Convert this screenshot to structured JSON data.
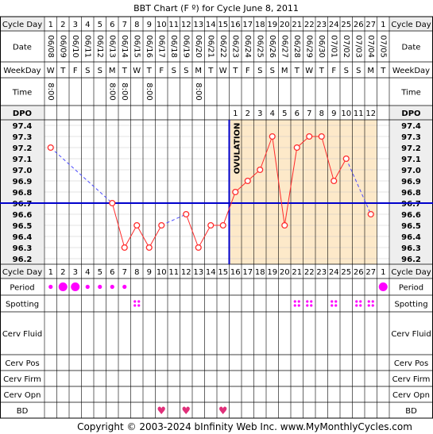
{
  "title": "BBT Chart (F º) for Cycle June 8, 2011",
  "footer": "Copyright © 2003-2024 bInfinity Web Inc.    www.MyMonthlyCycles.com",
  "row_labels": {
    "cycle_day": "Cycle Day",
    "date": "Date",
    "weekday": "WeekDay",
    "time": "Time",
    "dpo": "DPO",
    "period": "Period",
    "spotting": "Spotting",
    "cerv_fluid": "Cerv Fluid",
    "cerv_pos": "Cerv Pos",
    "cerv_firm": "Cerv Firm",
    "cerv_opn": "Cerv Opn",
    "bd": "BD"
  },
  "ovulation_label": "OVULATION",
  "days": [
    "1",
    "2",
    "3",
    "4",
    "5",
    "6",
    "7",
    "8",
    "9",
    "10",
    "11",
    "12",
    "13",
    "14",
    "15",
    "16",
    "17",
    "18",
    "19",
    "20",
    "21",
    "22",
    "23",
    "24",
    "25",
    "26",
    "27",
    "1"
  ],
  "dates": [
    "06/08",
    "06/09",
    "06/10",
    "06/11",
    "06/12",
    "06/13",
    "06/14",
    "06/15",
    "06/16",
    "06/17",
    "06/18",
    "06/19",
    "06/20",
    "06/21",
    "06/22",
    "06/23",
    "06/24",
    "06/25",
    "06/26",
    "06/27",
    "06/28",
    "06/29",
    "06/30",
    "07/01",
    "07/02",
    "07/03",
    "07/04",
    "07/05"
  ],
  "weekdays": [
    "W",
    "T",
    "F",
    "S",
    "S",
    "M",
    "T",
    "W",
    "T",
    "F",
    "S",
    "S",
    "M",
    "T",
    "W",
    "T",
    "F",
    "S",
    "S",
    "M",
    "T",
    "W",
    "T",
    "F",
    "S",
    "S",
    "M",
    "T"
  ],
  "times": [
    "8:00",
    "",
    "",
    "",
    "",
    "8:00",
    "8:00",
    "",
    "8:00",
    "",
    "",
    "",
    "8:00",
    "",
    "",
    "",
    "",
    "",
    "",
    "",
    "",
    "",
    "",
    "",
    "",
    "",
    "",
    ""
  ],
  "dpo": [
    "",
    "",
    "",
    "",
    "",
    "",
    "",
    "",
    "",
    "",
    "",
    "",
    "",
    "",
    "",
    "1",
    "2",
    "3",
    "4",
    "5",
    "6",
    "7",
    "8",
    "9",
    "10",
    "11",
    "12",
    ""
  ],
  "temp_labels": [
    "97.4",
    "97.3",
    "97.2",
    "97.1",
    "97.0",
    "96.9",
    "96.8",
    "96.7",
    "96.6",
    "96.5",
    "96.4",
    "96.3",
    "96.2"
  ],
  "period": [
    "small",
    "large",
    "large",
    "small",
    "small",
    "small",
    "small",
    "",
    "",
    "",
    "",
    "",
    "",
    "",
    "",
    "",
    "",
    "",
    "",
    "",
    "",
    "",
    "",
    "",
    "",
    "",
    "",
    "large"
  ],
  "spotting": [
    false,
    false,
    false,
    false,
    false,
    false,
    false,
    true,
    false,
    false,
    false,
    false,
    false,
    false,
    false,
    false,
    false,
    false,
    false,
    false,
    true,
    true,
    false,
    true,
    false,
    true,
    true,
    false
  ],
  "bd": [
    false,
    false,
    false,
    false,
    false,
    false,
    false,
    false,
    false,
    true,
    false,
    true,
    false,
    false,
    true,
    false,
    false,
    false,
    false,
    false,
    false,
    false,
    false,
    false,
    false,
    false,
    false,
    false
  ],
  "colors": {
    "grid": "#000000",
    "pre_ovulation_bg": "#ffffff",
    "post_ovulation_bg": "#fde9c9",
    "header_bg": "#eeeeee",
    "temp_line": "#ff2a2a",
    "dashed_line": "#4a4aff",
    "coverline": "#0000cc",
    "period": "#ff00ff",
    "spotting": "#ff00ff",
    "bd": "#e0307a"
  },
  "chart_data": {
    "type": "line",
    "x": [
      1,
      2,
      3,
      4,
      5,
      6,
      7,
      8,
      9,
      10,
      11,
      12,
      13,
      14,
      15,
      16,
      17,
      18,
      19,
      20,
      21,
      22,
      23,
      24,
      25,
      26,
      27,
      28
    ],
    "y": [
      97.2,
      null,
      null,
      null,
      null,
      96.7,
      96.3,
      96.5,
      96.3,
      96.5,
      null,
      96.6,
      96.3,
      96.5,
      96.5,
      96.8,
      96.9,
      97.0,
      97.3,
      96.5,
      97.2,
      97.3,
      97.3,
      96.9,
      97.1,
      null,
      96.6,
      null
    ],
    "ylim": [
      96.2,
      97.4
    ],
    "coverline": 96.7,
    "ovulation_day": 15,
    "x_tick_labels": [
      "1",
      "2",
      "3",
      "4",
      "5",
      "6",
      "7",
      "8",
      "9",
      "10",
      "11",
      "12",
      "13",
      "14",
      "15",
      "16",
      "17",
      "18",
      "19",
      "20",
      "21",
      "22",
      "23",
      "24",
      "25",
      "26",
      "27",
      "1"
    ],
    "xlabel": "Cycle Day",
    "ylabel": "",
    "grid": true
  }
}
